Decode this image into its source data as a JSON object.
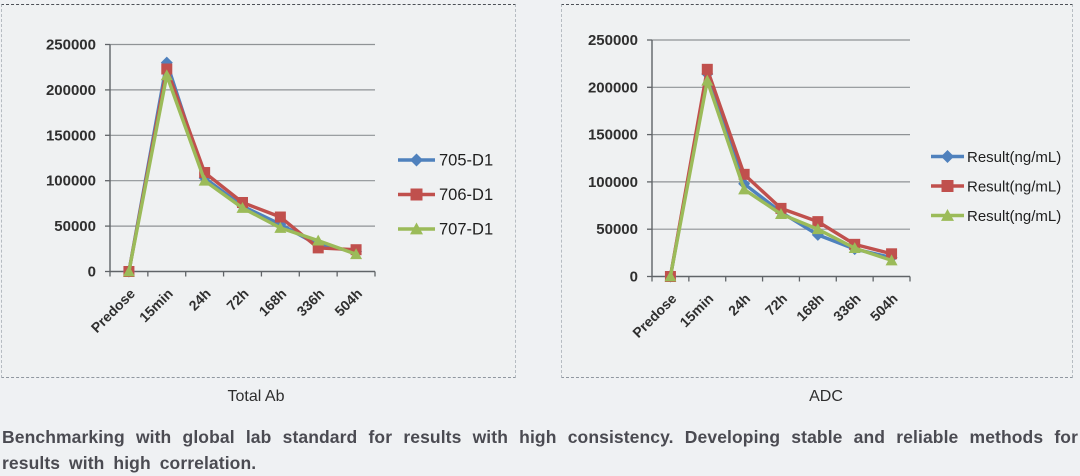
{
  "page": {
    "background": "#eff1f3"
  },
  "chart_data": [
    {
      "type": "line",
      "caption": "Total Ab",
      "categories": [
        "Predose",
        "15min",
        "24h",
        "72h",
        "168h",
        "336h",
        "504h"
      ],
      "series": [
        {
          "name": "705-D1",
          "color": "#4F81BD",
          "marker": "diamond",
          "values": [
            0,
            230000,
            103000,
            72000,
            52000,
            29000,
            22000
          ]
        },
        {
          "name": "706-D1",
          "color": "#C0504D",
          "marker": "square",
          "values": [
            0,
            223000,
            109000,
            76000,
            60000,
            26000,
            24000
          ]
        },
        {
          "name": "707-D1",
          "color": "#9BBB59",
          "marker": "triangle",
          "values": [
            0,
            216000,
            100000,
            70000,
            48000,
            34000,
            19000
          ]
        }
      ],
      "ylim": [
        0,
        250000
      ],
      "yticks": [
        0,
        50000,
        100000,
        150000,
        200000,
        250000
      ],
      "grid": true,
      "legend_position": "right"
    },
    {
      "type": "line",
      "caption": "ADC",
      "categories": [
        "Predose",
        "15min",
        "24h",
        "72h",
        "168h",
        "336h",
        "504h"
      ],
      "series": [
        {
          "name": "Result(ng/mL)",
          "color": "#4F81BD",
          "marker": "diamond",
          "values": [
            0,
            214000,
            98000,
            68000,
            44000,
            29000,
            20000
          ]
        },
        {
          "name": "Result(ng/mL)",
          "color": "#C0504D",
          "marker": "square",
          "values": [
            0,
            219000,
            108000,
            72000,
            58000,
            34000,
            24000
          ]
        },
        {
          "name": "Result(ng/mL)",
          "color": "#9BBB59",
          "marker": "triangle",
          "values": [
            0,
            207000,
            92000,
            66000,
            50000,
            30000,
            17000
          ]
        }
      ],
      "ylim": [
        0,
        250000
      ],
      "yticks": [
        0,
        50000,
        100000,
        150000,
        200000,
        250000
      ],
      "grid": true,
      "legend_position": "right"
    }
  ],
  "footer": {
    "text": "Benchmarking with global lab standard for results with high consistency. Developing stable and reliable methods for results with high correlation."
  },
  "colors": {
    "gridline": "#8f9396",
    "axis": "#606468",
    "tick_text": "#2f2f2f",
    "caption_text": "#2e2e2e",
    "footer_text": "#4b4b52"
  }
}
